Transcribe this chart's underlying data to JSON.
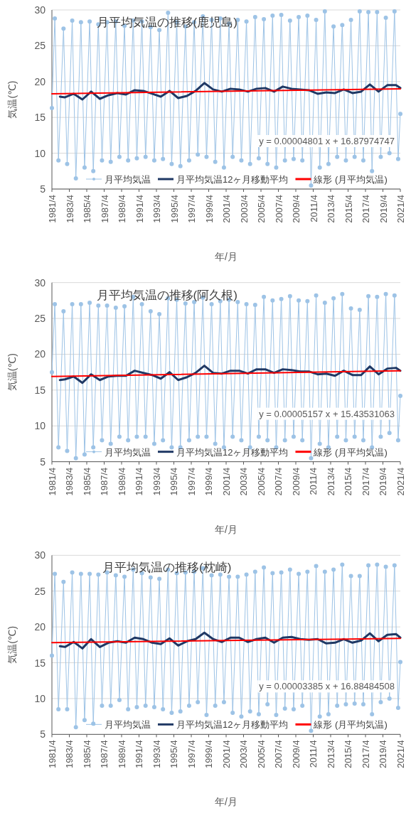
{
  "chart_data": [
    {
      "type": "line",
      "title": "月平均気温の推移(鹿児島)",
      "xlabel": "年/月",
      "ylabel": "気温(℃)",
      "annotations": [
        "y = 0.00004801 x + 16.87974747"
      ],
      "xlim": [
        "1981-04",
        "2021-04"
      ],
      "ylim": [
        5,
        30
      ],
      "yticks": [
        5,
        10,
        15,
        20,
        25,
        30
      ],
      "xticks": [
        {
          "value": "1981-04",
          "label": "1981/4"
        },
        {
          "value": "1983-04",
          "label": "1983/4"
        },
        {
          "value": "1985-04",
          "label": "1985/4"
        },
        {
          "value": "1987-04",
          "label": "1987/4"
        },
        {
          "value": "1989-04",
          "label": "1989/4"
        },
        {
          "value": "1991-04",
          "label": "1991/4"
        },
        {
          "value": "1993-04",
          "label": "1993/4"
        },
        {
          "value": "1995-04",
          "label": "1995/4"
        },
        {
          "value": "1997-04",
          "label": "1997/4"
        },
        {
          "value": "1999-04",
          "label": "1999/4"
        },
        {
          "value": "2001-04",
          "label": "2001/4"
        },
        {
          "value": "2003-04",
          "label": "2003/4"
        },
        {
          "value": "2005-04",
          "label": "2005/4"
        },
        {
          "value": "2007-04",
          "label": "2007/4"
        },
        {
          "value": "2009-04",
          "label": "2009/4"
        },
        {
          "value": "2011-04",
          "label": "2011/4"
        },
        {
          "value": "2013-04",
          "label": "2013/4"
        },
        {
          "value": "2015-04",
          "label": "2015/4"
        },
        {
          "value": "2017-04",
          "label": "2017/4"
        },
        {
          "value": "2019-04",
          "label": "2019/4"
        },
        {
          "value": "2021-04",
          "label": "2021/4"
        }
      ],
      "grid": "y",
      "legend": "bottom",
      "series": [
        {
          "name": "月平均気温",
          "color": "#9dc3e6",
          "marker": "circle",
          "x": [
            "1981-04",
            "1981-08",
            "1982-01",
            "1982-08",
            "1983-01",
            "1983-08",
            "1984-01",
            "1984-08",
            "1985-01",
            "1985-08",
            "1986-01",
            "1986-08",
            "1987-01",
            "1987-08",
            "1988-01",
            "1988-08",
            "1989-01",
            "1989-08",
            "1990-01",
            "1990-08",
            "1991-01",
            "1991-08",
            "1992-01",
            "1992-08",
            "1993-01",
            "1993-08",
            "1994-01",
            "1994-08",
            "1995-01",
            "1995-08",
            "1996-01",
            "1996-08",
            "1997-01",
            "1997-08",
            "1998-01",
            "1998-08",
            "1999-01",
            "1999-08",
            "2000-01",
            "2000-08",
            "2001-01",
            "2001-08",
            "2002-01",
            "2002-08",
            "2003-01",
            "2003-08",
            "2004-01",
            "2004-08",
            "2005-01",
            "2005-08",
            "2006-01",
            "2006-08",
            "2007-01",
            "2007-08",
            "2008-01",
            "2008-08",
            "2009-01",
            "2009-08",
            "2010-01",
            "2010-08",
            "2011-01",
            "2011-08",
            "2012-01",
            "2012-08",
            "2013-01",
            "2013-08",
            "2014-01",
            "2014-08",
            "2015-01",
            "2015-08",
            "2016-01",
            "2016-08",
            "2017-01",
            "2017-08",
            "2018-01",
            "2018-08",
            "2019-01",
            "2019-08",
            "2020-01",
            "2020-08",
            "2021-01",
            "2021-04"
          ],
          "values": [
            16.3,
            28.8,
            9.0,
            27.4,
            8.5,
            28.5,
            6.5,
            28.3,
            8.0,
            28.4,
            7.5,
            28.0,
            9.0,
            28.3,
            8.8,
            28.4,
            9.5,
            27.8,
            9.0,
            28.5,
            9.3,
            28.4,
            9.5,
            27.6,
            9.0,
            27.2,
            9.2,
            29.6,
            8.5,
            28.3,
            8.2,
            27.7,
            9.0,
            28.3,
            9.8,
            29.1,
            9.5,
            28.6,
            8.8,
            28.8,
            8.0,
            28.1,
            9.5,
            28.6,
            9.0,
            28.4,
            8.5,
            29.0,
            9.3,
            28.7,
            8.5,
            29.2,
            8.0,
            29.3,
            9.0,
            28.5,
            9.2,
            29.0,
            9.0,
            29.2,
            5.5,
            28.6,
            8.0,
            29.8,
            8.5,
            27.7,
            9.5,
            27.9,
            9.0,
            28.6,
            9.5,
            29.8,
            9.0,
            29.7,
            7.5,
            29.7,
            9.5,
            28.9,
            10.0,
            29.8,
            9.2,
            15.5
          ]
        },
        {
          "name": "月平均気温12ヶ月移動平均",
          "color": "#1f3864",
          "x": [
            "1982-03",
            "1982-10",
            "1983-10",
            "1984-10",
            "1985-10",
            "1986-10",
            "1987-10",
            "1988-10",
            "1989-10",
            "1990-10",
            "1991-10",
            "1992-10",
            "1993-10",
            "1994-10",
            "1995-10",
            "1996-10",
            "1997-10",
            "1998-10",
            "1999-10",
            "2000-10",
            "2001-10",
            "2002-10",
            "2003-10",
            "2004-10",
            "2005-10",
            "2006-10",
            "2007-10",
            "2008-10",
            "2009-10",
            "2010-10",
            "2011-10",
            "2012-10",
            "2013-10",
            "2014-10",
            "2015-10",
            "2016-10",
            "2017-10",
            "2018-10",
            "2019-10",
            "2020-10",
            "2021-04"
          ],
          "values": [
            17.9,
            17.8,
            18.3,
            17.5,
            18.6,
            17.6,
            18.1,
            18.4,
            18.2,
            18.8,
            18.7,
            18.3,
            17.9,
            18.7,
            17.7,
            18.0,
            18.7,
            19.8,
            18.9,
            18.6,
            19.0,
            18.9,
            18.6,
            19.0,
            19.1,
            18.6,
            19.3,
            19.0,
            18.9,
            18.8,
            18.3,
            18.5,
            18.4,
            18.9,
            18.4,
            18.6,
            19.6,
            18.6,
            19.5,
            19.5,
            19.1
          ]
        },
        {
          "name": "線形 (月平均気温)",
          "color": "#ff0000",
          "x": [
            "1981-04",
            "2021-04"
          ],
          "values": [
            18.3,
            19.0
          ]
        }
      ]
    },
    {
      "type": "line",
      "title": "月平均気温の推移(阿久根)",
      "xlabel": "年/月",
      "ylabel": "気温(℃)",
      "annotations": [
        "y = 0.00005157 x + 15.43531063"
      ],
      "xlim": [
        "1981-04",
        "2021-04"
      ],
      "ylim": [
        5,
        30
      ],
      "yticks": [
        5,
        10,
        15,
        20,
        25,
        30
      ],
      "xticks": [
        {
          "value": "1981-04",
          "label": "1981/4"
        },
        {
          "value": "1983-04",
          "label": "1983/4"
        },
        {
          "value": "1985-04",
          "label": "1985/4"
        },
        {
          "value": "1987-04",
          "label": "1987/4"
        },
        {
          "value": "1989-04",
          "label": "1989/4"
        },
        {
          "value": "1991-04",
          "label": "1991/4"
        },
        {
          "value": "1993-04",
          "label": "1993/4"
        },
        {
          "value": "1995-04",
          "label": "1995/4"
        },
        {
          "value": "1997-04",
          "label": "1997/4"
        },
        {
          "value": "1999-04",
          "label": "1999/4"
        },
        {
          "value": "2001-04",
          "label": "2001/4"
        },
        {
          "value": "2003-04",
          "label": "2003/4"
        },
        {
          "value": "2005-04",
          "label": "2005/4"
        },
        {
          "value": "2007-04",
          "label": "2007/4"
        },
        {
          "value": "2009-04",
          "label": "2009/4"
        },
        {
          "value": "2011-04",
          "label": "2011/4"
        },
        {
          "value": "2013-04",
          "label": "2013/4"
        },
        {
          "value": "2015-04",
          "label": "2015/4"
        },
        {
          "value": "2017-04",
          "label": "2017/4"
        },
        {
          "value": "2019-04",
          "label": "2019/4"
        },
        {
          "value": "2021-04",
          "label": "2021/4"
        }
      ],
      "grid": "y",
      "legend": "bottom",
      "series": [
        {
          "name": "月平均気温",
          "color": "#9dc3e6",
          "marker": "circle",
          "x": [
            "1981-04",
            "1981-08",
            "1982-01",
            "1982-08",
            "1983-01",
            "1983-08",
            "1984-01",
            "1984-08",
            "1985-01",
            "1985-08",
            "1986-01",
            "1986-08",
            "1987-01",
            "1987-08",
            "1988-01",
            "1988-08",
            "1989-01",
            "1989-08",
            "1990-01",
            "1990-08",
            "1991-01",
            "1991-08",
            "1992-01",
            "1992-08",
            "1993-01",
            "1993-08",
            "1994-01",
            "1994-08",
            "1995-01",
            "1995-08",
            "1996-01",
            "1996-08",
            "1997-01",
            "1997-08",
            "1998-01",
            "1998-08",
            "1999-01",
            "1999-08",
            "2000-01",
            "2000-08",
            "2001-01",
            "2001-08",
            "2002-01",
            "2002-08",
            "2003-01",
            "2003-08",
            "2004-01",
            "2004-08",
            "2005-01",
            "2005-08",
            "2006-01",
            "2006-08",
            "2007-01",
            "2007-08",
            "2008-01",
            "2008-08",
            "2009-01",
            "2009-08",
            "2010-01",
            "2010-08",
            "2011-01",
            "2011-08",
            "2012-01",
            "2012-08",
            "2013-01",
            "2013-08",
            "2014-01",
            "2014-08",
            "2015-01",
            "2015-08",
            "2016-01",
            "2016-08",
            "2017-01",
            "2017-08",
            "2018-01",
            "2018-08",
            "2019-01",
            "2019-08",
            "2020-01",
            "2020-08",
            "2021-01",
            "2021-04"
          ],
          "values": [
            17.5,
            27.0,
            7.0,
            26.0,
            6.5,
            27.0,
            5.5,
            27.0,
            6.0,
            27.2,
            7.0,
            26.8,
            8.0,
            26.8,
            7.5,
            26.5,
            8.5,
            26.7,
            8.0,
            28.0,
            8.5,
            27.0,
            8.5,
            26.0,
            7.5,
            25.6,
            8.0,
            27.8,
            7.0,
            27.6,
            7.0,
            27.1,
            8.0,
            27.3,
            8.5,
            27.9,
            8.5,
            27.0,
            7.5,
            27.4,
            7.0,
            27.6,
            8.5,
            27.3,
            8.0,
            27.0,
            7.0,
            26.9,
            8.5,
            28.0,
            8.0,
            27.5,
            7.0,
            27.7,
            8.0,
            28.1,
            8.5,
            27.5,
            8.0,
            27.4,
            5.5,
            28.2,
            7.5,
            27.2,
            7.0,
            27.8,
            8.5,
            28.4,
            8.0,
            26.4,
            8.5,
            26.2,
            8.0,
            28.1,
            7.0,
            28.0,
            8.5,
            28.4,
            9.0,
            28.2,
            8.0,
            14.2
          ]
        },
        {
          "name": "月平均気温12ヶ月移動平均",
          "color": "#1f3864",
          "x": [
            "1982-03",
            "1982-10",
            "1983-10",
            "1984-10",
            "1985-10",
            "1986-10",
            "1987-10",
            "1988-10",
            "1989-10",
            "1990-10",
            "1991-10",
            "1992-10",
            "1993-10",
            "1994-10",
            "1995-10",
            "1996-10",
            "1997-10",
            "1998-10",
            "1999-10",
            "2000-10",
            "2001-10",
            "2002-10",
            "2003-10",
            "2004-10",
            "2005-10",
            "2006-10",
            "2007-10",
            "2008-10",
            "2009-10",
            "2010-10",
            "2011-10",
            "2012-10",
            "2013-10",
            "2014-10",
            "2015-10",
            "2016-10",
            "2017-10",
            "2018-10",
            "2019-10",
            "2020-10",
            "2021-04"
          ],
          "values": [
            16.4,
            16.5,
            16.9,
            16.0,
            17.2,
            16.4,
            16.9,
            17.0,
            17.0,
            17.7,
            17.4,
            17.1,
            16.6,
            17.5,
            16.4,
            16.8,
            17.4,
            18.4,
            17.4,
            17.3,
            17.7,
            17.7,
            17.3,
            17.9,
            17.9,
            17.4,
            17.9,
            17.8,
            17.6,
            17.6,
            17.2,
            17.3,
            17.0,
            17.7,
            17.1,
            17.1,
            18.3,
            17.2,
            18.0,
            18.1,
            17.7
          ]
        },
        {
          "name": "線形 (月平均気温)",
          "color": "#ff0000",
          "x": [
            "1981-04",
            "2021-04"
          ],
          "values": [
            16.9,
            17.7
          ]
        }
      ]
    },
    {
      "type": "line",
      "title": "月平均気温の推移(枕崎)",
      "xlabel": "年/月",
      "ylabel": "気温(℃)",
      "annotations": [
        "y = 0.00003385 x + 16.88484508"
      ],
      "xlim": [
        "1981-04",
        "2021-04"
      ],
      "ylim": [
        5,
        30
      ],
      "yticks": [
        5,
        10,
        15,
        20,
        25,
        30
      ],
      "xticks": [
        {
          "value": "1981-04",
          "label": "1981/4"
        },
        {
          "value": "1983-04",
          "label": "1983/4"
        },
        {
          "value": "1985-04",
          "label": "1985/4"
        },
        {
          "value": "1987-04",
          "label": "1987/4"
        },
        {
          "value": "1989-04",
          "label": "1989/4"
        },
        {
          "value": "1991-04",
          "label": "1991/4"
        },
        {
          "value": "1993-04",
          "label": "1993/4"
        },
        {
          "value": "1995-04",
          "label": "1995/4"
        },
        {
          "value": "1997-04",
          "label": "1997/4"
        },
        {
          "value": "1999-04",
          "label": "1999/4"
        },
        {
          "value": "2001-04",
          "label": "2001/4"
        },
        {
          "value": "2003-04",
          "label": "2003/4"
        },
        {
          "value": "2005-04",
          "label": "2005/4"
        },
        {
          "value": "2007-04",
          "label": "2007/4"
        },
        {
          "value": "2009-04",
          "label": "2009/4"
        },
        {
          "value": "2011-04",
          "label": "2011/4"
        },
        {
          "value": "2013-04",
          "label": "2013/4"
        },
        {
          "value": "2015-04",
          "label": "2015/4"
        },
        {
          "value": "2017-04",
          "label": "2017/4"
        },
        {
          "value": "2019-04",
          "label": "2019/4"
        },
        {
          "value": "2021-04",
          "label": "2021/4"
        }
      ],
      "grid": "y",
      "legend": "bottom",
      "series": [
        {
          "name": "月平均気温",
          "color": "#9dc3e6",
          "marker": "circle",
          "x": [
            "1981-04",
            "1981-08",
            "1982-01",
            "1982-08",
            "1983-01",
            "1983-08",
            "1984-01",
            "1984-08",
            "1985-01",
            "1985-08",
            "1986-01",
            "1986-08",
            "1987-01",
            "1987-08",
            "1988-01",
            "1988-08",
            "1989-01",
            "1989-08",
            "1990-01",
            "1990-08",
            "1991-01",
            "1991-08",
            "1992-01",
            "1992-08",
            "1993-01",
            "1993-08",
            "1994-01",
            "1994-08",
            "1995-01",
            "1995-08",
            "1996-01",
            "1996-08",
            "1997-01",
            "1997-08",
            "1998-01",
            "1998-08",
            "1999-01",
            "1999-08",
            "2000-01",
            "2000-08",
            "2001-01",
            "2001-08",
            "2002-01",
            "2002-08",
            "2003-01",
            "2003-08",
            "2004-01",
            "2004-08",
            "2005-01",
            "2005-08",
            "2006-01",
            "2006-08",
            "2007-01",
            "2007-08",
            "2008-01",
            "2008-08",
            "2009-01",
            "2009-08",
            "2010-01",
            "2010-08",
            "2011-01",
            "2011-08",
            "2012-01",
            "2012-08",
            "2013-01",
            "2013-08",
            "2014-01",
            "2014-08",
            "2015-01",
            "2015-08",
            "2016-01",
            "2016-08",
            "2017-01",
            "2017-08",
            "2018-01",
            "2018-08",
            "2019-01",
            "2019-08",
            "2020-01",
            "2020-08",
            "2021-01",
            "2021-04"
          ],
          "values": [
            16.0,
            27.4,
            8.5,
            26.3,
            8.5,
            27.6,
            6.0,
            27.4,
            7.0,
            27.4,
            6.5,
            27.3,
            9.0,
            27.6,
            9.0,
            27.2,
            9.8,
            27.0,
            8.5,
            28.0,
            8.8,
            27.5,
            9.0,
            26.9,
            8.8,
            26.7,
            8.5,
            28.0,
            8.0,
            27.5,
            8.2,
            27.6,
            9.0,
            27.7,
            9.5,
            28.2,
            7.7,
            27.2,
            9.0,
            27.3,
            9.5,
            27.0,
            8.0,
            27.0,
            7.5,
            27.3,
            8.2,
            27.7,
            7.8,
            28.3,
            9.2,
            27.5,
            7.7,
            27.6,
            8.6,
            28.0,
            8.5,
            27.4,
            9.0,
            27.7,
            5.5,
            28.5,
            7.5,
            27.7,
            7.8,
            28.0,
            9.0,
            28.7,
            9.2,
            27.1,
            9.3,
            27.1,
            9.2,
            28.6,
            7.8,
            28.7,
            9.5,
            28.4,
            10.0,
            28.6,
            8.7,
            15.1
          ]
        },
        {
          "name": "月平均気温12ヶ月移動平均",
          "color": "#1f3864",
          "x": [
            "1982-03",
            "1982-10",
            "1983-10",
            "1984-10",
            "1985-10",
            "1986-10",
            "1987-10",
            "1988-10",
            "1989-10",
            "1990-10",
            "1991-10",
            "1992-10",
            "1993-10",
            "1994-10",
            "1995-10",
            "1996-10",
            "1997-10",
            "1998-10",
            "1999-10",
            "2000-10",
            "2001-10",
            "2002-10",
            "2003-10",
            "2004-10",
            "2005-10",
            "2006-10",
            "2007-10",
            "2008-10",
            "2009-10",
            "2010-10",
            "2011-10",
            "2012-10",
            "2013-10",
            "2014-10",
            "2015-10",
            "2016-10",
            "2017-10",
            "2018-10",
            "2019-10",
            "2020-10",
            "2021-04"
          ],
          "values": [
            17.3,
            17.2,
            17.9,
            17.0,
            18.3,
            17.2,
            17.8,
            18.0,
            17.8,
            18.5,
            18.3,
            17.8,
            17.6,
            18.4,
            17.4,
            18.0,
            18.3,
            19.2,
            18.3,
            17.9,
            18.5,
            18.5,
            17.9,
            18.3,
            18.5,
            17.8,
            18.5,
            18.6,
            18.3,
            18.2,
            18.3,
            17.7,
            17.8,
            18.3,
            17.8,
            18.1,
            19.1,
            18.0,
            18.9,
            19.0,
            18.5
          ]
        },
        {
          "name": "線形 (月平均気温)",
          "color": "#ff0000",
          "x": [
            "1981-04",
            "2021-04"
          ],
          "values": [
            17.8,
            18.4
          ]
        }
      ]
    }
  ]
}
